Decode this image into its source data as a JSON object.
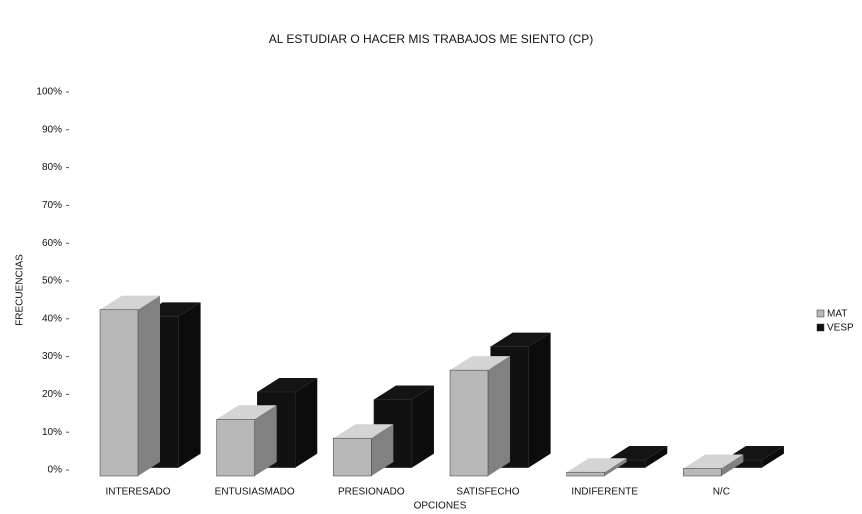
{
  "chart_data": {
    "type": "bar3d",
    "title": "AL ESTUDIAR O HACER MIS TRABAJOS ME SIENTO (CP)",
    "x_label": "OPCIONES",
    "y_label": "FRECUENCIAS",
    "categories": [
      "INTERESADO",
      "ENTUSIASMADO",
      "PRESIONADO",
      "SATISFECHO",
      "INDIFERENTE",
      "N/C"
    ],
    "series": [
      {
        "name": "MAT",
        "color": "#b8b8b8",
        "values": [
          44,
          15,
          10,
          28,
          1,
          2
        ]
      },
      {
        "name": "VESP",
        "color": "#111111",
        "values": [
          40,
          20,
          18,
          32,
          2,
          2
        ]
      }
    ],
    "ylim": [
      0,
      100
    ],
    "yticks": [
      {
        "value": 0,
        "label": "0%"
      },
      {
        "value": 10,
        "label": "10%"
      },
      {
        "value": 20,
        "label": "20%"
      },
      {
        "value": 30,
        "label": "30%"
      },
      {
        "value": 40,
        "label": "40%"
      },
      {
        "value": 50,
        "label": "50%"
      },
      {
        "value": 60,
        "label": "60%"
      },
      {
        "value": 70,
        "label": "70%"
      },
      {
        "value": 80,
        "label": "80%"
      },
      {
        "value": 90,
        "label": "90%"
      },
      {
        "value": 100,
        "label": "100%"
      }
    ],
    "legend": "right"
  }
}
